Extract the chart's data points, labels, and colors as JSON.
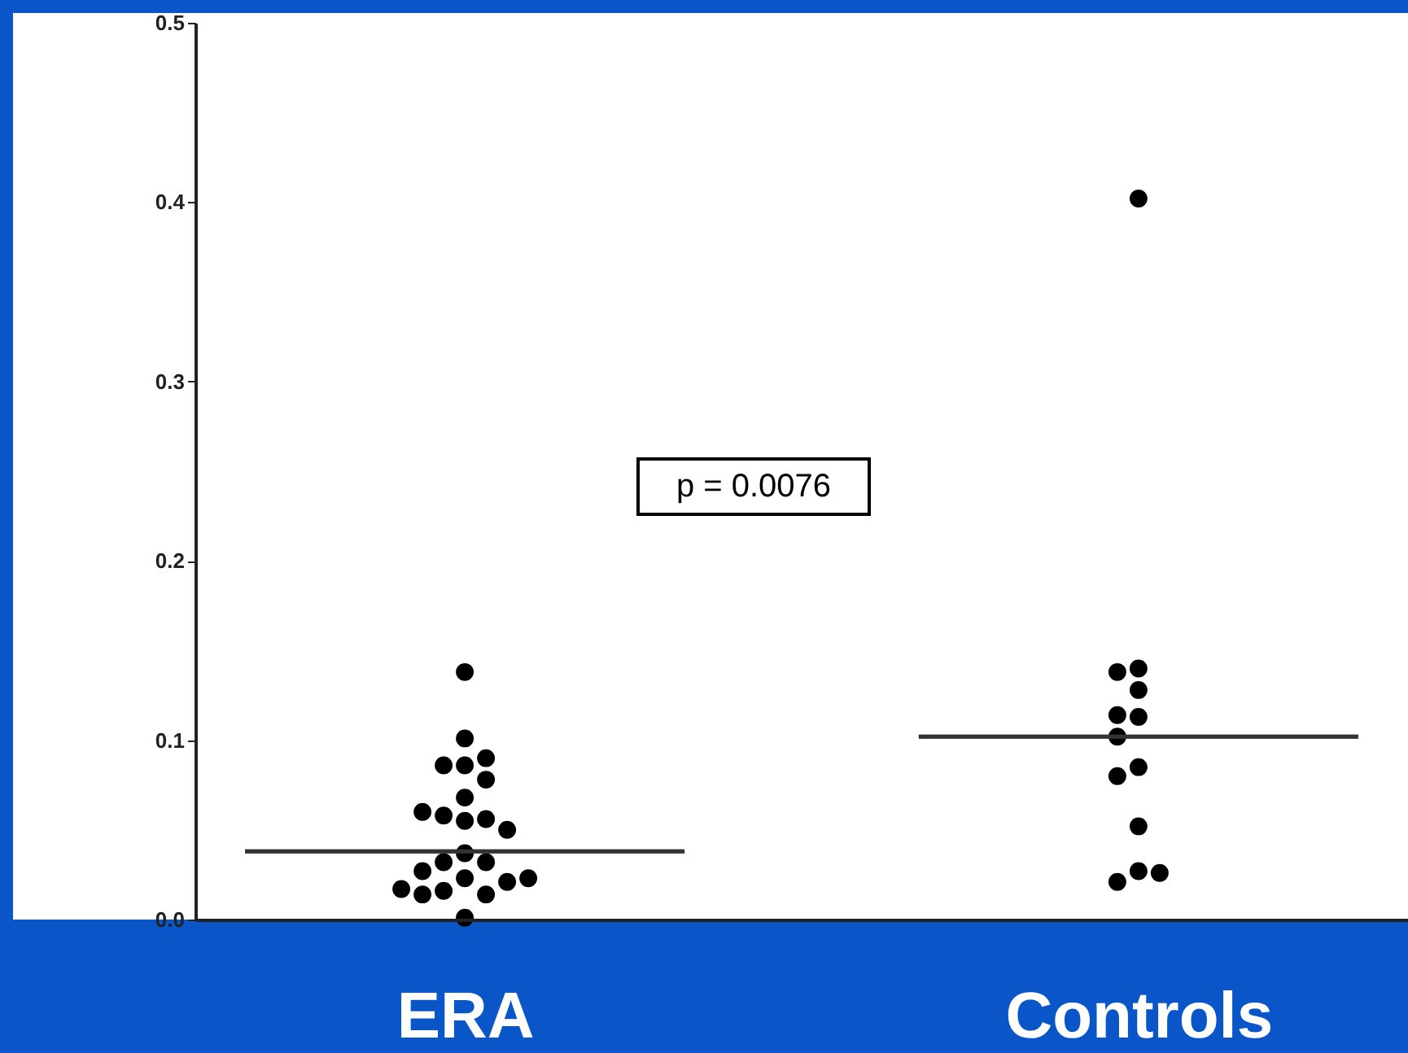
{
  "chart_data": {
    "type": "scatter",
    "categories": [
      "ERA",
      "Controls"
    ],
    "series": [
      {
        "color": "#000000",
        "marker": "circle",
        "x": [
          "ERA",
          "ERA",
          "ERA",
          "ERA",
          "ERA",
          "ERA",
          "ERA",
          "ERA",
          "ERA",
          "ERA",
          "ERA",
          "ERA",
          "ERA",
          "ERA",
          "ERA",
          "ERA",
          "ERA",
          "ERA",
          "ERA",
          "ERA",
          "ERA",
          "ERA",
          "ERA",
          "ERA",
          "Controls",
          "Controls",
          "Controls",
          "Controls",
          "Controls",
          "Controls",
          "Controls",
          "Controls",
          "Controls",
          "Controls",
          "Controls",
          "Controls",
          "Controls"
        ],
        "values": [
          0.138,
          0.101,
          0.086,
          0.086,
          0.09,
          0.078,
          0.068,
          0.058,
          0.055,
          0.056,
          0.06,
          0.05,
          0.037,
          0.032,
          0.032,
          0.027,
          0.023,
          0.021,
          0.016,
          0.014,
          0.014,
          0.017,
          0.023,
          0.001,
          0.402,
          0.14,
          0.138,
          0.128,
          0.113,
          0.114,
          0.102,
          0.085,
          0.08,
          0.052,
          0.027,
          0.021,
          0.026
        ]
      },
      {
        "type": "box",
        "color": "#333333",
        "boxes": [
          {
            "low": 0.038,
            "q1": 0.038,
            "median": 0.038,
            "q3": 0.038,
            "high": 0.038
          },
          {
            "low": 0.102,
            "q1": 0.102,
            "median": 0.102,
            "q3": 0.102,
            "high": 0.102
          }
        ]
      }
    ],
    "ylim": [
      0,
      0.5
    ],
    "yticks": [
      {
        "value": 0,
        "label": "0.0"
      },
      {
        "value": 0.1,
        "label": "0.1"
      },
      {
        "value": 0.2,
        "label": "0.2"
      },
      {
        "value": 0.3,
        "label": "0.3"
      },
      {
        "value": 0.4,
        "label": "0.4"
      },
      {
        "value": 0.5,
        "label": "0.5"
      }
    ],
    "annotations": [
      "p = 0.0076"
    ],
    "grid": false
  }
}
